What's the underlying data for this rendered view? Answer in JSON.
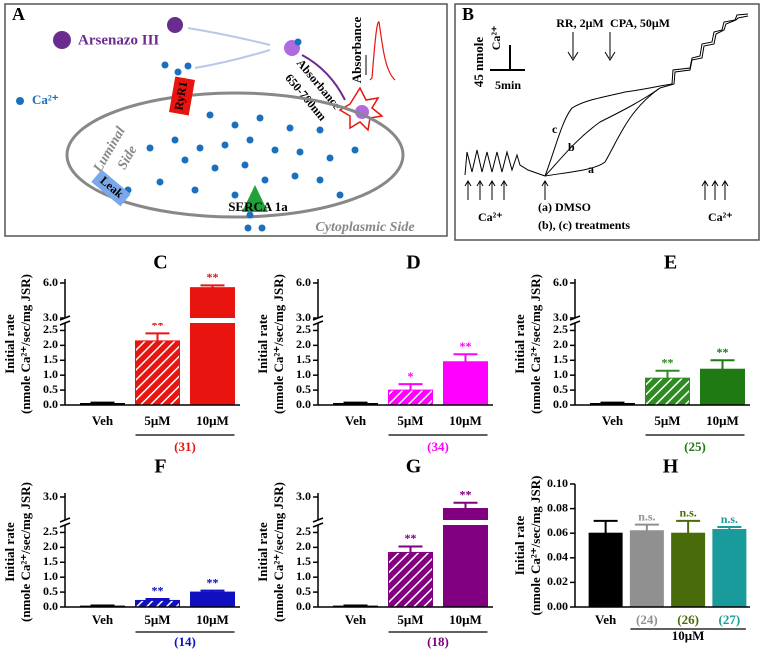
{
  "diagram": {
    "label": "A",
    "arsenazo": "Arsenazo III",
    "calcium": "Ca²⁺",
    "ryr1": "RyR1",
    "absorbance": "Absorbance",
    "wavelength_line1": "Absorbance",
    "wavelength_line2": "650-700nm",
    "luminal": "Luminal",
    "side": "Side",
    "leak": "Leak",
    "serca": "SERCA 1a",
    "cytoplasmic": "Cytoplasmic Side"
  },
  "trace": {
    "label": "B",
    "scale_y_line1": "45 nmole",
    "scale_y_line2": "Ca²⁺",
    "scale_x": "5min",
    "rr": "RR, 2μM",
    "cpa": "CPA, 50μM",
    "curve_a": "a",
    "curve_b": "b",
    "curve_c": "c",
    "legend_a": "(a) DMSO",
    "legend_bc": "(b), (c) treatments",
    "ca_left": "Ca²⁺",
    "ca_right": "Ca²⁺"
  },
  "chart_data": [
    {
      "type": "bar",
      "panel": "C",
      "ylabel": [
        "Initial rate",
        "(nmole Ca²⁺/sec/mg JSR)"
      ],
      "categories": [
        "Veh",
        "5μM",
        "10μM"
      ],
      "values": [
        0.05,
        2.15,
        5.6
      ],
      "errors": [
        0.03,
        0.25,
        0.2
      ],
      "colors": [
        "#000000",
        "#e8140f",
        "#e8140f"
      ],
      "hatched": [
        false,
        true,
        false
      ],
      "annotations": [
        null,
        "**",
        "**"
      ],
      "group_label": "(31)",
      "group_color": "#e8140f",
      "ylim": [
        0,
        6
      ],
      "ybreak": [
        2.75,
        3.0
      ],
      "yticks": [
        {
          "value": 0,
          "label": "0.0"
        },
        {
          "value": 0.5,
          "label": "0.5"
        },
        {
          "value": 1,
          "label": "1.0"
        },
        {
          "value": 1.5,
          "label": "1.5"
        },
        {
          "value": 2,
          "label": "2.0"
        },
        {
          "value": 2.5,
          "label": "2.5"
        },
        {
          "value": 3,
          "label": "3.0"
        },
        {
          "value": 6,
          "label": "6.0"
        }
      ]
    },
    {
      "type": "bar",
      "panel": "D",
      "ylabel": [
        "Initial rate",
        "(nmole Ca²⁺/sec/mg JSR)"
      ],
      "categories": [
        "Veh",
        "5μM",
        "10μM"
      ],
      "values": [
        0.05,
        0.5,
        1.45
      ],
      "errors": [
        0.03,
        0.2,
        0.25
      ],
      "colors": [
        "#000000",
        "#ff00ff",
        "#ff00ff"
      ],
      "hatched": [
        false,
        true,
        false
      ],
      "annotations": [
        null,
        "*",
        "**"
      ],
      "group_label": "(34)",
      "group_color": "#ff00ff",
      "ylim": [
        0,
        6
      ],
      "ybreak": [
        2.75,
        3.0
      ],
      "yticks": [
        {
          "value": 0,
          "label": "0.0"
        },
        {
          "value": 0.5,
          "label": "0.5"
        },
        {
          "value": 1,
          "label": "1.0"
        },
        {
          "value": 1.5,
          "label": "1.5"
        },
        {
          "value": 2,
          "label": "2.0"
        },
        {
          "value": 2.5,
          "label": "2.5"
        },
        {
          "value": 3,
          "label": "3.0"
        },
        {
          "value": 6,
          "label": "6.0"
        }
      ]
    },
    {
      "type": "bar",
      "panel": "E",
      "ylabel": [
        "Initial rate",
        "(nmole Ca²⁺/sec/mg JSR)"
      ],
      "categories": [
        "Veh",
        "5μM",
        "10μM"
      ],
      "values": [
        0.05,
        0.9,
        1.2
      ],
      "errors": [
        0.03,
        0.25,
        0.3
      ],
      "colors": [
        "#000000",
        "#2e8b22",
        "#1f7a14"
      ],
      "hatched": [
        false,
        true,
        false
      ],
      "annotations": [
        null,
        "**",
        "**"
      ],
      "group_label": "(25)",
      "group_color": "#1f7a14",
      "ylim": [
        0,
        6
      ],
      "ybreak": [
        2.75,
        3.0
      ],
      "yticks": [
        {
          "value": 0,
          "label": "0.0"
        },
        {
          "value": 0.5,
          "label": "0.5"
        },
        {
          "value": 1,
          "label": "1.0"
        },
        {
          "value": 1.5,
          "label": "1.5"
        },
        {
          "value": 2,
          "label": "2.0"
        },
        {
          "value": 2.5,
          "label": "2.5"
        },
        {
          "value": 3,
          "label": "3.0"
        },
        {
          "value": 6,
          "label": "6.0"
        }
      ]
    },
    {
      "type": "bar",
      "panel": "F",
      "ylabel": [
        "Initial rate",
        "(nmole Ca²⁺/sec/mg JSR)"
      ],
      "categories": [
        "Veh",
        "5μM",
        "10μM"
      ],
      "values": [
        0.03,
        0.22,
        0.5
      ],
      "errors": [
        0.02,
        0.05,
        0.05
      ],
      "colors": [
        "#000000",
        "#1010c0",
        "#1010c0"
      ],
      "hatched": [
        false,
        true,
        false
      ],
      "annotations": [
        null,
        "**",
        "**"
      ],
      "group_label": "(14)",
      "group_color": "#1010c0",
      "ylim": [
        0,
        3
      ],
      "ybreak": [
        2.75,
        2.8
      ],
      "yticks": [
        {
          "value": 0,
          "label": "0.0"
        },
        {
          "value": 0.5,
          "label": "0.5"
        },
        {
          "value": 1,
          "label": "1.0"
        },
        {
          "value": 1.5,
          "label": "1.5"
        },
        {
          "value": 2,
          "label": "2.0"
        },
        {
          "value": 2.5,
          "label": "2.5"
        },
        {
          "value": 3,
          "label": "3.0"
        }
      ]
    },
    {
      "type": "bar",
      "panel": "G",
      "ylabel": [
        "Initial rate",
        "(nmole Ca²⁺/sec/mg JSR)"
      ],
      "categories": [
        "Veh",
        "5μM",
        "10μM"
      ],
      "values": [
        0.03,
        1.83,
        2.9
      ],
      "errors": [
        0.02,
        0.2,
        0.05
      ],
      "colors": [
        "#000000",
        "#800080",
        "#800080"
      ],
      "hatched": [
        false,
        true,
        false
      ],
      "annotations": [
        null,
        "**",
        "**"
      ],
      "group_label": "(18)",
      "group_color": "#800080",
      "ylim": [
        0,
        3
      ],
      "ybreak": [
        2.75,
        2.8
      ],
      "yticks": [
        {
          "value": 0,
          "label": "0.0"
        },
        {
          "value": 0.5,
          "label": "0.5"
        },
        {
          "value": 1,
          "label": "1.0"
        },
        {
          "value": 1.5,
          "label": "1.5"
        },
        {
          "value": 2,
          "label": "2.0"
        },
        {
          "value": 2.5,
          "label": "2.5"
        },
        {
          "value": 3,
          "label": "3.0"
        }
      ]
    },
    {
      "type": "bar",
      "panel": "H",
      "ylabel": [
        "Initial rate",
        "(nmole Ca²⁺/sec/mg JSR)"
      ],
      "categories": [
        "Veh",
        "(24)",
        "(26)",
        "(27)"
      ],
      "category_colors": [
        "#000000",
        "#909090",
        "#4a6b0a",
        "#1a9b9b"
      ],
      "values": [
        0.06,
        0.062,
        0.06,
        0.063
      ],
      "errors": [
        0.01,
        0.005,
        0.01,
        0.002
      ],
      "colors": [
        "#000000",
        "#909090",
        "#4a6b0a",
        "#1a9b9b"
      ],
      "hatched": [
        false,
        false,
        false,
        false
      ],
      "annotations": [
        null,
        "n.s.",
        "n.s.",
        "n.s."
      ],
      "group_label": "10μM",
      "group_color": "#000000",
      "ylim": [
        0,
        0.1
      ],
      "yticks": [
        {
          "value": 0,
          "label": "0.00"
        },
        {
          "value": 0.02,
          "label": "0.02"
        },
        {
          "value": 0.04,
          "label": "0.04"
        },
        {
          "value": 0.06,
          "label": "0.06"
        },
        {
          "value": 0.08,
          "label": "0.08"
        },
        {
          "value": 0.1,
          "label": "0.10"
        }
      ]
    }
  ]
}
